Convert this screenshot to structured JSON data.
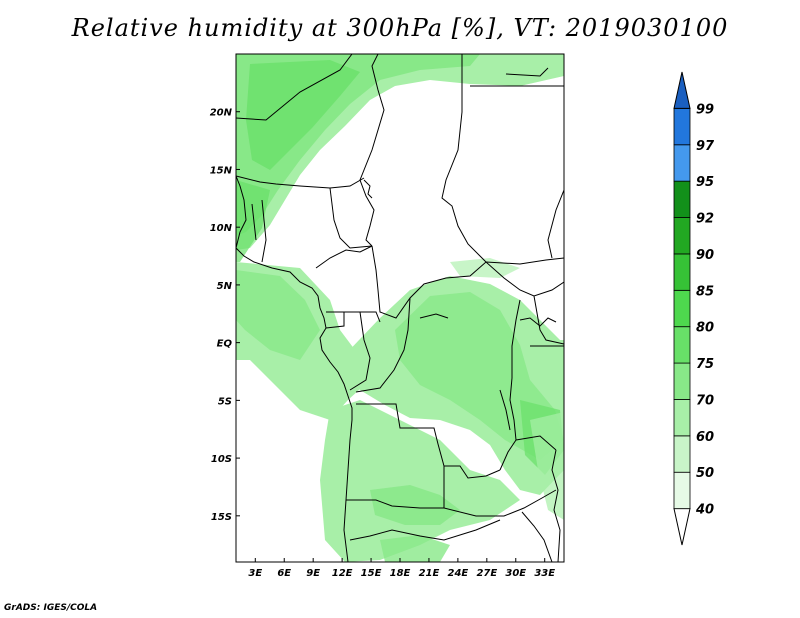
{
  "title": "Relative humidity at 300hPa [%], VT: 2019030100",
  "credit": "GrADS: IGES/COLA",
  "map": {
    "lon_range": [
      1,
      35
    ],
    "lat_range": [
      -19,
      25
    ],
    "lon_ticks": [
      {
        "value": 3,
        "label": "3E"
      },
      {
        "value": 6,
        "label": "6E"
      },
      {
        "value": 9,
        "label": "9E"
      },
      {
        "value": 12,
        "label": "12E"
      },
      {
        "value": 15,
        "label": "15E"
      },
      {
        "value": 18,
        "label": "18E"
      },
      {
        "value": 21,
        "label": "21E"
      },
      {
        "value": 24,
        "label": "24E"
      },
      {
        "value": 27,
        "label": "27E"
      },
      {
        "value": 30,
        "label": "30E"
      },
      {
        "value": 33,
        "label": "33E"
      }
    ],
    "lat_ticks": [
      {
        "value": 20,
        "label": "20N"
      },
      {
        "value": 15,
        "label": "15N"
      },
      {
        "value": 10,
        "label": "10N"
      },
      {
        "value": 5,
        "label": "5N"
      },
      {
        "value": 0,
        "label": "EQ"
      },
      {
        "value": -5,
        "label": "5S"
      },
      {
        "value": -10,
        "label": "10S"
      },
      {
        "value": -15,
        "label": "15S"
      }
    ],
    "borders_color": "#000000"
  },
  "colorbar": {
    "levels": [
      "40",
      "50",
      "60",
      "70",
      "75",
      "80",
      "85",
      "90",
      "92",
      "95",
      "97",
      "99"
    ],
    "colors": [
      "#ffffff",
      "#e6fae6",
      "#c8f5c8",
      "#a8efa8",
      "#88e888",
      "#68e068",
      "#4ed84e",
      "#36c236",
      "#22a822",
      "#12901a",
      "#4499ee",
      "#2277dd",
      "#1a5fc0"
    ]
  }
}
